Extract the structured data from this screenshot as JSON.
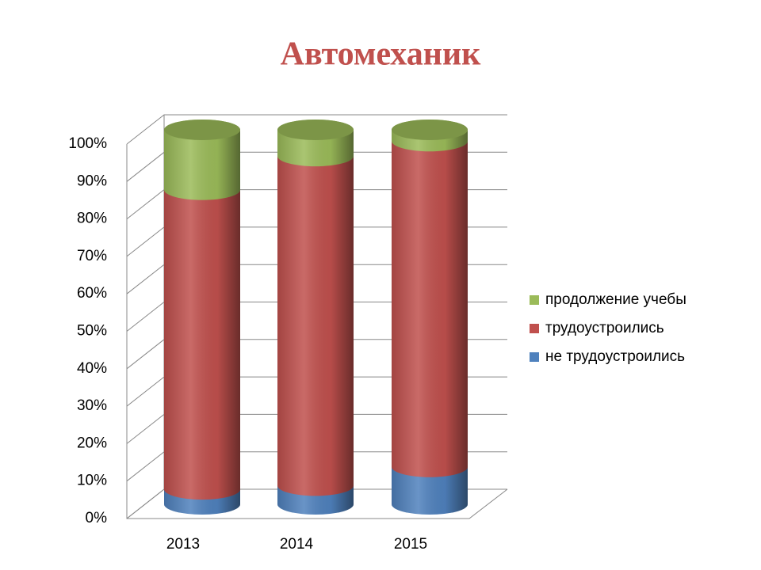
{
  "chart_data": {
    "type": "bar3d-cylinder-stacked",
    "title": "Автомеханик",
    "categories": [
      "2013",
      "2014",
      "2015"
    ],
    "series": [
      {
        "name": "не трудоустроились",
        "color": "#4f81bd",
        "values": [
          4,
          5,
          10
        ]
      },
      {
        "name": "трудоустроились",
        "color": "#c0504d",
        "values": [
          80,
          88,
          87
        ]
      },
      {
        "name": "продолжение учебы",
        "color": "#9bbb59",
        "values": [
          16,
          7,
          3
        ]
      }
    ],
    "ylim": [
      0,
      100
    ],
    "yticks": [
      {
        "value": 0,
        "label": "0%"
      },
      {
        "value": 10,
        "label": "10%"
      },
      {
        "value": 20,
        "label": "20%"
      },
      {
        "value": 30,
        "label": "30%"
      },
      {
        "value": 40,
        "label": "40%"
      },
      {
        "value": 50,
        "label": "50%"
      },
      {
        "value": 60,
        "label": "60%"
      },
      {
        "value": 70,
        "label": "70%"
      },
      {
        "value": 80,
        "label": "80%"
      },
      {
        "value": 90,
        "label": "90%"
      },
      {
        "value": 100,
        "label": "100%"
      }
    ],
    "grid": true,
    "legend": "right"
  }
}
